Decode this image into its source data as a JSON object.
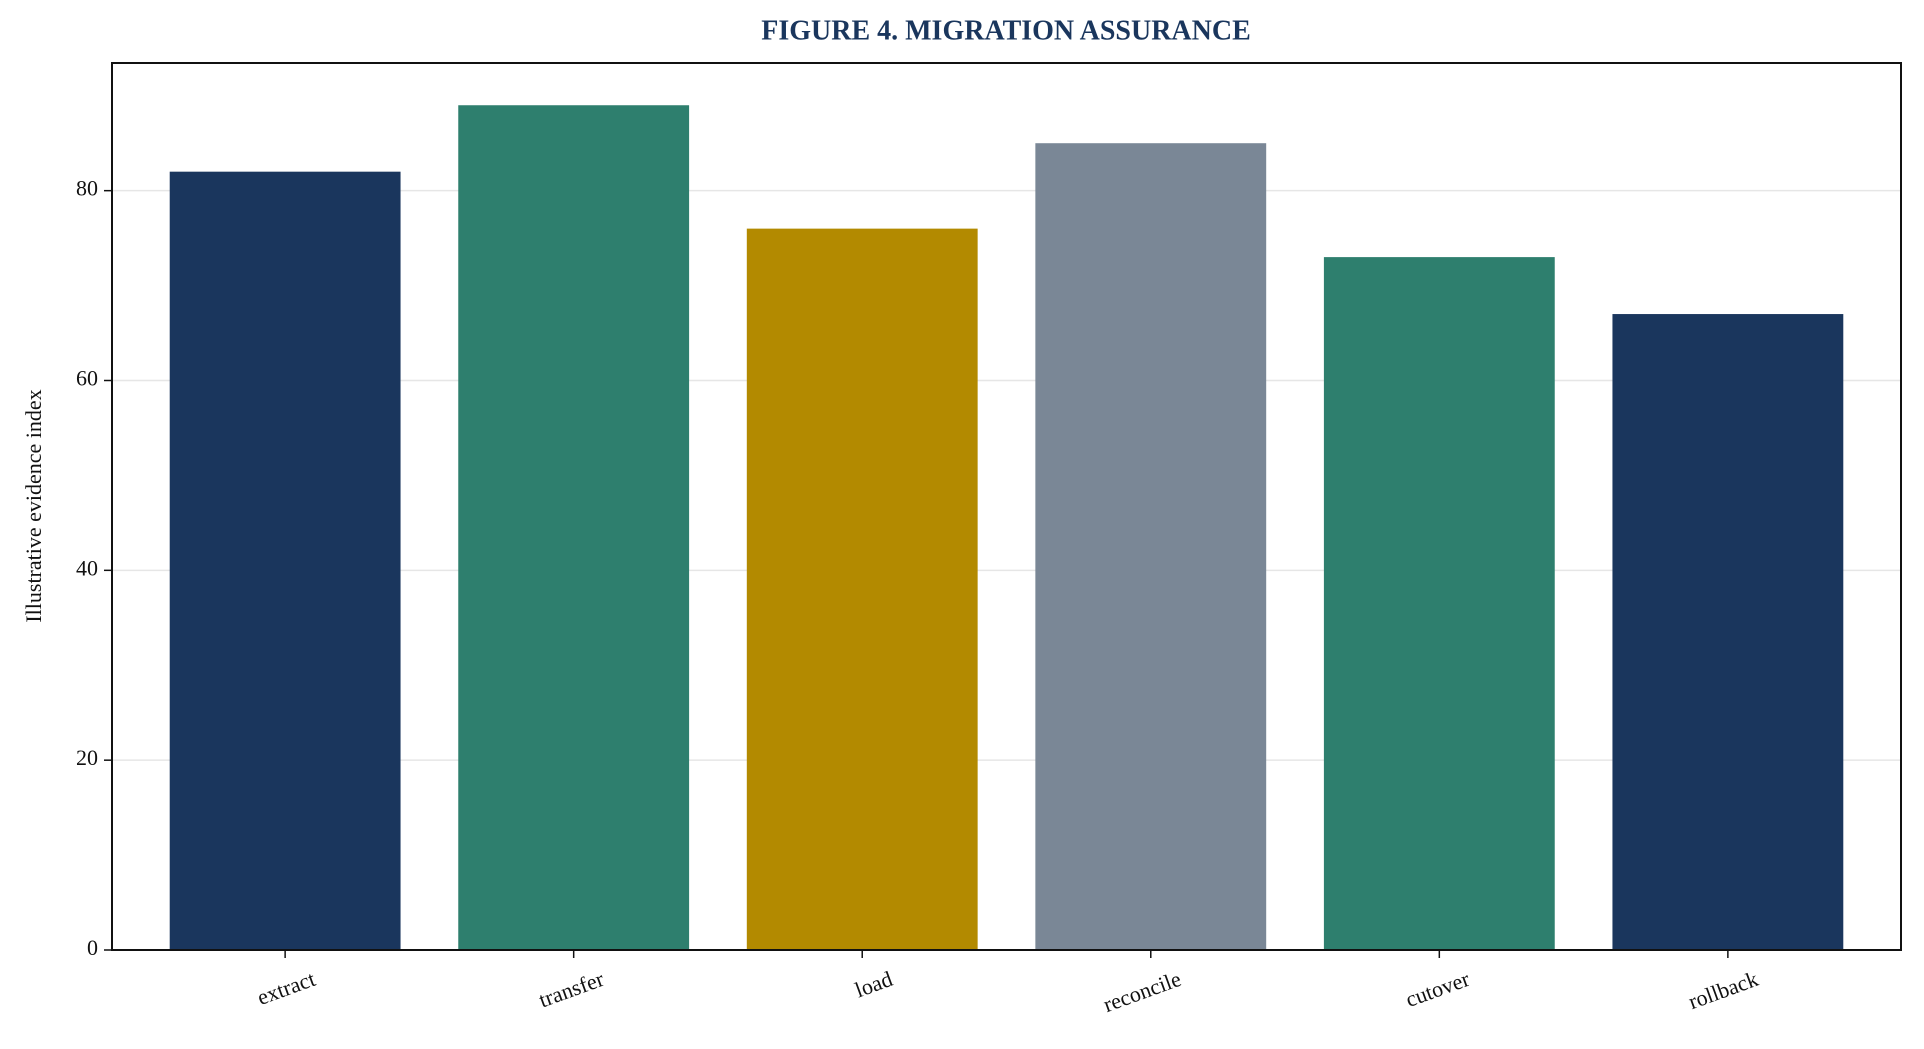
{
  "chart_data": {
    "type": "bar",
    "title": "FIGURE 4. MIGRATION ASSURANCE",
    "y_label": "Illustrative evidence index",
    "categories": [
      "extract",
      "transfer",
      "load",
      "reconcile",
      "cutover",
      "rollback"
    ],
    "values": [
      82,
      89,
      76,
      85,
      73,
      67
    ],
    "colors": [
      "#1a365d",
      "#2e7f6e",
      "#b38a00",
      "#7a8796",
      "#2e7f6e",
      "#1a365d"
    ],
    "ylim": [
      0,
      93.45
    ],
    "yticks": [
      0,
      20,
      40,
      60,
      80
    ],
    "grid": true
  }
}
